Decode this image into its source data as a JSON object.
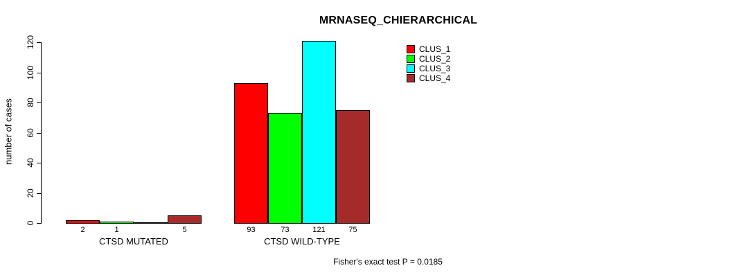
{
  "title": "MRNASEQ_CHIERARCHICAL",
  "y_axis_label": "number of cases",
  "footnote": "Fisher's exact test P = 0.0185",
  "legend": {
    "items": [
      {
        "label": "CLUS_1",
        "color": "#ff0000"
      },
      {
        "label": "CLUS_2",
        "color": "#00ff00"
      },
      {
        "label": "CLUS_3",
        "color": "#00ffff"
      },
      {
        "label": "CLUS_4",
        "color": "#a52a2a"
      }
    ]
  },
  "chart_data": {
    "type": "bar",
    "title": "MRNASEQ_CHIERARCHICAL",
    "xlabel": "",
    "ylabel": "number of cases",
    "categories": [
      "CTSD MUTATED",
      "CTSD WILD-TYPE"
    ],
    "series": [
      {
        "name": "CLUS_1",
        "color": "#ff0000",
        "values": [
          2,
          93
        ]
      },
      {
        "name": "CLUS_2",
        "color": "#00ff00",
        "values": [
          1,
          73
        ]
      },
      {
        "name": "CLUS_3",
        "color": "#00ffff",
        "values": [
          0,
          121
        ]
      },
      {
        "name": "CLUS_4",
        "color": "#a52a2a",
        "values": [
          5,
          75
        ]
      }
    ],
    "bar_value_labels": [
      [
        "2",
        "1",
        "",
        "5"
      ],
      [
        "93",
        "73",
        "121",
        "75"
      ]
    ],
    "ylim": [
      0,
      120
    ],
    "yticks": [
      0,
      20,
      40,
      60,
      80,
      100,
      120
    ],
    "grid": false,
    "legend_position": "top-right",
    "annotation": "Fisher's exact test P = 0.0185"
  }
}
